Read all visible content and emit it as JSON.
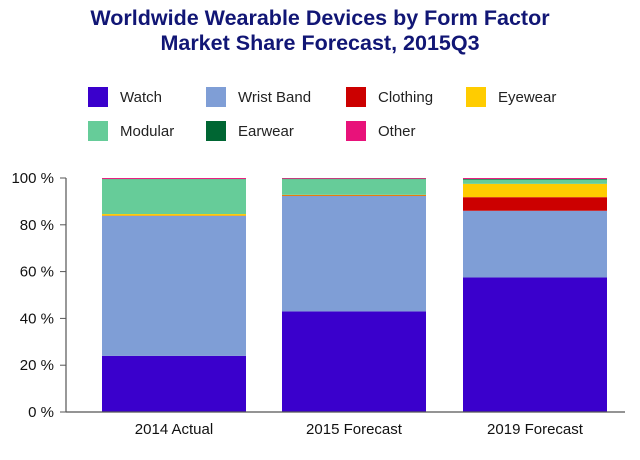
{
  "title": {
    "line1": "Worldwide Wearable Devices by Form Factor",
    "line2": "Market Share Forecast, 2015Q3"
  },
  "chart_data": {
    "type": "bar",
    "stacked": true,
    "title": "Worldwide Wearable Devices by Form Factor Market Share Forecast, 2015Q3",
    "categories": [
      "2014 Actual",
      "2015 Forecast",
      "2019 Forecast"
    ],
    "ylim": [
      0,
      100
    ],
    "yticks": [
      0,
      20,
      40,
      60,
      80,
      100
    ],
    "ytick_labels": [
      "0 %",
      "20 %",
      "40 %",
      "60 %",
      "80 %",
      "100 %"
    ],
    "grid": false,
    "legend_position": "top",
    "series": [
      {
        "name": "Watch",
        "color": "#3a00cc",
        "values": [
          24,
          43,
          57.5
        ]
      },
      {
        "name": "Wrist Band",
        "color": "#7f9ed6",
        "values": [
          59.8,
          49.3,
          28.5
        ]
      },
      {
        "name": "Clothing",
        "color": "#cc0000",
        "values": [
          0.1,
          0.2,
          5.8
        ]
      },
      {
        "name": "Eyewear",
        "color": "#ffcc00",
        "values": [
          0.7,
          0.3,
          5.7
        ]
      },
      {
        "name": "Modular",
        "color": "#66cc99",
        "values": [
          14.9,
          6.7,
          1.8
        ]
      },
      {
        "name": "Earwear",
        "color": "#006633",
        "values": [
          0.1,
          0.2,
          0.3
        ]
      },
      {
        "name": "Other",
        "color": "#e8127a",
        "values": [
          0.4,
          0.3,
          0.4
        ]
      }
    ]
  }
}
